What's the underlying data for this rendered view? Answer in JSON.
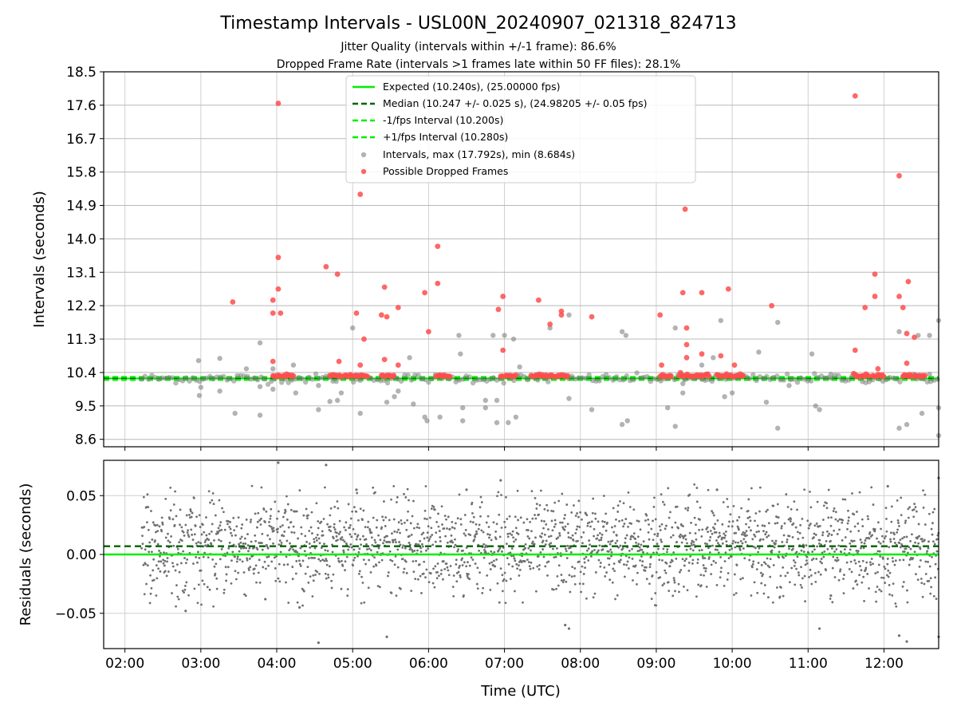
{
  "chart_data": [
    {
      "type": "scatter",
      "title": "Timestamp Intervals - USL00N_20240907_021318_824713",
      "subtitle_lines": [
        "Jitter Quality (intervals within +/-1 frame): 86.6%",
        "Dropped Frame Rate (intervals >1 frames late within 50 FF files): 28.1%"
      ],
      "xlabel": "",
      "ylabel": "Intervals (seconds)",
      "x_unit": "hours UTC",
      "xlim": [
        1.72,
        12.72
      ],
      "ylim": [
        8.4,
        18.5
      ],
      "y_ticks": [
        "8.6",
        "9.5",
        "10.4",
        "11.3",
        "12.2",
        "13.1",
        "14.0",
        "14.9",
        "15.8",
        "16.7",
        "17.6",
        "18.5"
      ],
      "grid": true,
      "legend_position": "upper-center",
      "reference_lines": [
        {
          "name": "Expected (10.240s), (25.00000 fps)",
          "value": 10.24,
          "color": "#00ee00",
          "style": "solid"
        },
        {
          "name": "Median (10.247 +/- 0.025 s), (24.98205 +/- 0.05 fps)",
          "value": 10.247,
          "color": "#006400",
          "style": "dashed"
        },
        {
          "name": "-1/fps Interval (10.200s)",
          "value": 10.2,
          "color": "#00ee00",
          "style": "dashed"
        },
        {
          "name": "+1/fps Interval (10.280s)",
          "value": 10.28,
          "color": "#00ee00",
          "style": "dashed"
        }
      ],
      "series": [
        {
          "name": "Intervals, max (17.792s), min (8.684s)",
          "color": "#808080",
          "points": [
            [
              2.97,
              10.72
            ],
            [
              2.98,
              9.78
            ],
            [
              3.0,
              10.0
            ],
            [
              3.25,
              10.78
            ],
            [
              3.25,
              9.9
            ],
            [
              3.45,
              9.3
            ],
            [
              3.6,
              10.5
            ],
            [
              3.78,
              11.2
            ],
            [
              3.78,
              9.25
            ],
            [
              3.78,
              10.02
            ],
            [
              3.95,
              10.5
            ],
            [
              3.95,
              9.95
            ],
            [
              4.22,
              10.6
            ],
            [
              4.25,
              9.85
            ],
            [
              4.55,
              10.05
            ],
            [
              4.55,
              9.4
            ],
            [
              4.7,
              9.62
            ],
            [
              4.8,
              9.65
            ],
            [
              4.85,
              9.85
            ],
            [
              5.0,
              11.6
            ],
            [
              5.1,
              9.3
            ],
            [
              5.45,
              9.6
            ],
            [
              5.55,
              9.75
            ],
            [
              5.6,
              9.9
            ],
            [
              5.75,
              10.8
            ],
            [
              5.8,
              9.55
            ],
            [
              5.95,
              9.2
            ],
            [
              5.98,
              9.1
            ],
            [
              6.15,
              9.2
            ],
            [
              6.4,
              11.4
            ],
            [
              6.42,
              10.9
            ],
            [
              6.45,
              9.45
            ],
            [
              6.45,
              9.1
            ],
            [
              6.75,
              9.45
            ],
            [
              6.75,
              9.65
            ],
            [
              6.85,
              11.4
            ],
            [
              6.9,
              9.05
            ],
            [
              6.9,
              9.65
            ],
            [
              7.0,
              11.4
            ],
            [
              7.05,
              9.05
            ],
            [
              7.12,
              11.3
            ],
            [
              7.15,
              9.2
            ],
            [
              7.2,
              10.55
            ],
            [
              7.6,
              11.6
            ],
            [
              7.85,
              11.95
            ],
            [
              7.85,
              9.7
            ],
            [
              8.15,
              9.4
            ],
            [
              8.55,
              11.5
            ],
            [
              8.55,
              9.0
            ],
            [
              8.6,
              11.4
            ],
            [
              8.62,
              9.1
            ],
            [
              9.15,
              9.45
            ],
            [
              9.25,
              11.6
            ],
            [
              9.25,
              8.95
            ],
            [
              9.35,
              10.1
            ],
            [
              9.35,
              9.85
            ],
            [
              9.6,
              10.6
            ],
            [
              9.75,
              10.8
            ],
            [
              9.85,
              11.8
            ],
            [
              9.9,
              9.75
            ],
            [
              10.0,
              9.85
            ],
            [
              10.35,
              10.95
            ],
            [
              10.45,
              9.6
            ],
            [
              10.6,
              11.75
            ],
            [
              10.6,
              8.9
            ],
            [
              10.75,
              10.05
            ],
            [
              11.05,
              10.9
            ],
            [
              11.1,
              9.5
            ],
            [
              11.15,
              9.4
            ],
            [
              11.3,
              10.35
            ],
            [
              12.2,
              11.5
            ],
            [
              12.2,
              8.9
            ],
            [
              12.3,
              9.0
            ],
            [
              12.45,
              11.4
            ],
            [
              12.5,
              9.3
            ],
            [
              12.6,
              11.4
            ],
            [
              12.6,
              10.35
            ],
            [
              12.72,
              11.8
            ],
            [
              12.72,
              9.45
            ],
            [
              12.72,
              8.7
            ]
          ]
        },
        {
          "name": "Possible Dropped Frames",
          "color": "#ff4c4c",
          "points": [
            [
              3.42,
              12.3
            ],
            [
              3.95,
              12.35
            ],
            [
              3.95,
              12.0
            ],
            [
              3.95,
              10.7
            ],
            [
              4.02,
              17.65
            ],
            [
              4.02,
              13.5
            ],
            [
              4.02,
              12.65
            ],
            [
              4.05,
              12.0
            ],
            [
              4.65,
              13.25
            ],
            [
              4.8,
              13.05
            ],
            [
              4.82,
              10.7
            ],
            [
              5.05,
              12.0
            ],
            [
              5.1,
              15.2
            ],
            [
              5.15,
              11.3
            ],
            [
              5.1,
              10.6
            ],
            [
              5.38,
              11.95
            ],
            [
              5.42,
              12.7
            ],
            [
              5.45,
              11.9
            ],
            [
              5.42,
              10.75
            ],
            [
              5.6,
              12.15
            ],
            [
              5.6,
              10.6
            ],
            [
              5.95,
              12.55
            ],
            [
              6.0,
              11.5
            ],
            [
              6.12,
              13.8
            ],
            [
              6.12,
              12.8
            ],
            [
              6.92,
              12.1
            ],
            [
              6.98,
              12.45
            ],
            [
              6.98,
              11.0
            ],
            [
              7.45,
              12.35
            ],
            [
              7.6,
              11.7
            ],
            [
              7.75,
              11.95
            ],
            [
              7.75,
              12.05
            ],
            [
              8.15,
              11.9
            ],
            [
              9.05,
              11.95
            ],
            [
              9.07,
              10.6
            ],
            [
              9.35,
              12.55
            ],
            [
              9.38,
              14.8
            ],
            [
              9.4,
              11.6
            ],
            [
              9.4,
              11.15
            ],
            [
              9.4,
              10.8
            ],
            [
              9.6,
              12.55
            ],
            [
              9.6,
              10.9
            ],
            [
              9.85,
              10.85
            ],
            [
              9.95,
              12.65
            ],
            [
              10.03,
              10.6
            ],
            [
              10.52,
              12.2
            ],
            [
              11.62,
              17.85
            ],
            [
              11.62,
              11.0
            ],
            [
              11.75,
              12.15
            ],
            [
              11.88,
              13.05
            ],
            [
              11.88,
              12.45
            ],
            [
              11.92,
              10.5
            ],
            [
              12.2,
              15.7
            ],
            [
              12.2,
              12.45
            ],
            [
              12.25,
              12.15
            ],
            [
              12.3,
              11.45
            ],
            [
              12.32,
              12.85
            ],
            [
              12.3,
              10.65
            ],
            [
              12.4,
              11.35
            ]
          ]
        }
      ]
    },
    {
      "type": "scatter",
      "xlabel": "Time (UTC)",
      "ylabel": "Residuals (seconds)",
      "x_unit": "hours UTC",
      "xlim": [
        1.72,
        12.72
      ],
      "ylim": [
        -0.08,
        0.08
      ],
      "x_ticks": [
        "02:00",
        "03:00",
        "04:00",
        "05:00",
        "06:00",
        "07:00",
        "08:00",
        "09:00",
        "10:00",
        "11:00",
        "12:00"
      ],
      "y_ticks": [
        "−0.05",
        "0.00",
        "0.05"
      ],
      "grid": true,
      "reference_lines": [
        {
          "value": 0.0,
          "color": "#00ee00",
          "style": "solid"
        },
        {
          "value": 0.007,
          "color": "#006400",
          "style": "dashed"
        }
      ],
      "series": [
        {
          "color": "#707070",
          "x_range": [
            2.22,
            12.72
          ],
          "mean": 0.007,
          "std": 0.02,
          "outliers": [
            [
              4.02,
              0.078
            ],
            [
              4.65,
              0.076
            ],
            [
              4.3,
              -0.045
            ],
            [
              4.55,
              -0.075
            ],
            [
              5.45,
              -0.07
            ],
            [
              6.5,
              0.055
            ],
            [
              6.95,
              0.063
            ],
            [
              7.85,
              -0.063
            ],
            [
              7.8,
              -0.06
            ],
            [
              11.15,
              -0.063
            ],
            [
              12.05,
              0.058
            ],
            [
              12.2,
              -0.069
            ],
            [
              12.3,
              -0.074
            ],
            [
              12.72,
              0.065
            ],
            [
              12.72,
              -0.07
            ],
            [
              2.8,
              -0.048
            ],
            [
              3.85,
              -0.038
            ],
            [
              5.05,
              0.055
            ],
            [
              9.8,
              0.055
            ],
            [
              11.3,
              -0.035
            ]
          ]
        }
      ]
    }
  ]
}
